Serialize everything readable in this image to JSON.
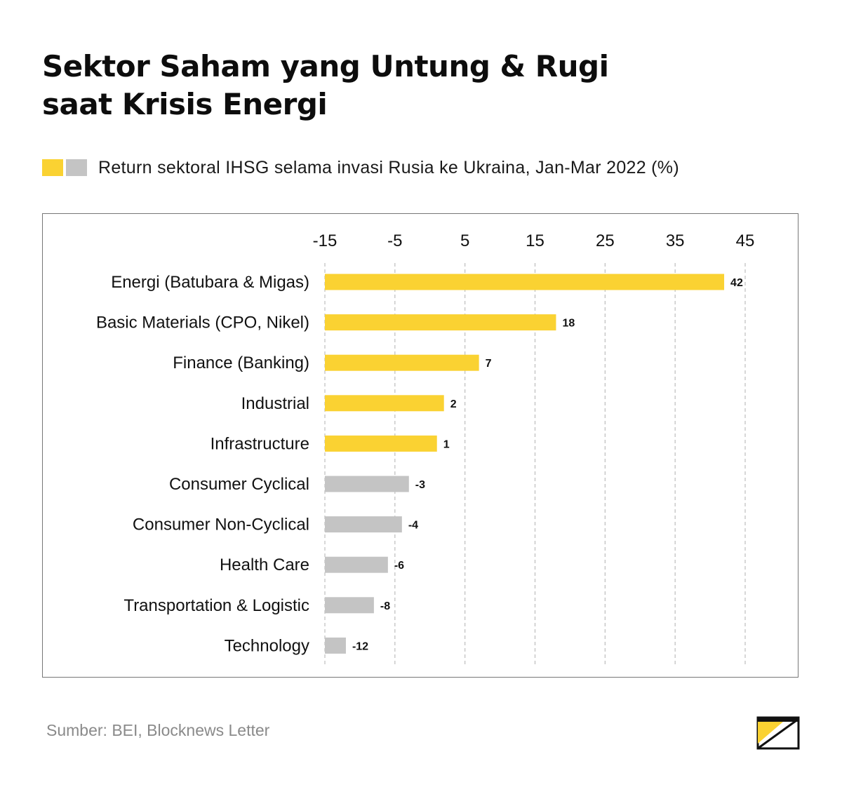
{
  "header": {
    "title_line1": "Sektor Saham yang Untung & Rugi",
    "title_line2": "saat Krisis Energi"
  },
  "legend": {
    "text": "Return sektoral IHSG selama invasi Rusia ke Ukraina, Jan-Mar 2022 (%)"
  },
  "colors": {
    "positive": "#fad232",
    "negative": "#c4c4c4",
    "grid": "#bdbdbd",
    "logo_dark": "#111111",
    "logo_accent": "#fad232"
  },
  "chart_data": {
    "type": "bar",
    "orientation": "horizontal",
    "categories": [
      "Energi (Batubara & Migas)",
      "Basic Materials (CPO, Nikel)",
      "Finance (Banking)",
      "Industrial",
      "Infrastructure",
      "Consumer Cyclical",
      "Consumer Non-Cyclical",
      "Health Care",
      "Transportation & Logistic",
      "Technology"
    ],
    "values": [
      42,
      18,
      7,
      2,
      1,
      -3,
      -4,
      -6,
      -8,
      -12
    ],
    "data_labels": [
      "42",
      "18",
      "7",
      "2",
      "1",
      "-3",
      "-4",
      "-6",
      "-8",
      "-12"
    ],
    "x_ticks": [
      -15,
      -5,
      5,
      15,
      25,
      35,
      45
    ],
    "x_tick_labels": [
      "-15",
      "-5",
      "5",
      "15",
      "25",
      "35",
      "45"
    ],
    "xlim": [
      -15,
      45
    ],
    "x_axis_position": "top",
    "grid": "vertical dashed",
    "bar_baseline": -15
  },
  "footer": {
    "source": "Sumber: BEI, Blocknews Letter",
    "logo_icon": "envelope-logo-icon"
  }
}
